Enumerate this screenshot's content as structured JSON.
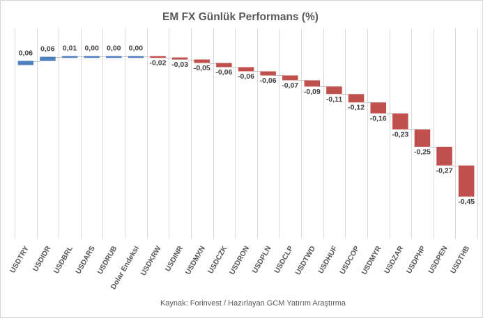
{
  "title": "EM FX Günlük Performans (%)",
  "source_note": "Kaynak: Forinvest / Hazırlayan GCM Yatırım Araştırma",
  "chart_data": {
    "type": "bar",
    "subtype": "waterfall",
    "title": "EM FX Günlük Performans (%)",
    "xlabel": "",
    "ylabel": "",
    "categories": [
      "USDTRY",
      "USDIDR",
      "USDBRL",
      "USDARS",
      "USDRUB",
      "Dolar Endeksi",
      "USDKRW",
      "USDINR",
      "USDMXN",
      "USDCZK",
      "USDRON",
      "USDPLN",
      "USDCLP",
      "USDTWD",
      "USDHUF",
      "USDCOP",
      "USDMYR",
      "USDZAR",
      "USDPHP",
      "USDPEN",
      "USDTHB"
    ],
    "values": [
      0.06,
      0.06,
      0.01,
      0.0,
      0.0,
      0.0,
      -0.02,
      -0.03,
      -0.05,
      -0.06,
      -0.06,
      -0.06,
      -0.07,
      -0.09,
      -0.11,
      -0.12,
      -0.16,
      -0.23,
      -0.25,
      -0.27,
      -0.45
    ],
    "value_labels": [
      "0,06",
      "0,06",
      "0,01",
      "0,00",
      "0,00",
      "0,00",
      "-0,02",
      "-0,03",
      "-0,05",
      "-0,06",
      "-0,06",
      "-0,06",
      "-0,07",
      "-0,09",
      "-0,11",
      "-0,12",
      "-0,16",
      "-0,23",
      "-0,25",
      "-0,27",
      "-0,45"
    ],
    "cumulative": [
      0.06,
      0.12,
      0.13,
      0.13,
      0.13,
      0.13,
      0.11,
      0.08,
      0.03,
      -0.03,
      -0.09,
      -0.15,
      -0.22,
      -0.31,
      -0.42,
      -0.54,
      -0.7,
      -0.93,
      -1.18,
      -1.45,
      -1.9
    ],
    "ylim": [
      -2.5,
      0.55
    ],
    "grid": "vertical-only",
    "legend": "none",
    "colors": {
      "positive": "#4E81BD",
      "negative": "#C0504D",
      "gridline": "#D9D9D9",
      "connector": "#C6C6C6",
      "title_text": "#595959",
      "axis_text": "#595959",
      "value_label_text": "#404040",
      "footer_text": "#595959"
    }
  }
}
